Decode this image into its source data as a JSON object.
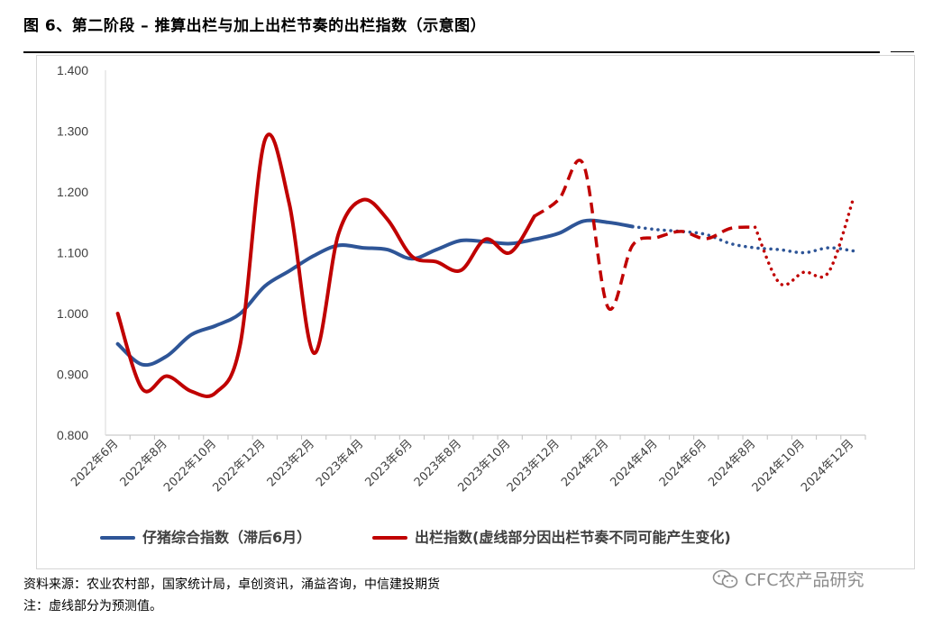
{
  "figure": {
    "title": "图 6、第二阶段 – 推算出栏与加上出栏节奏的出栏指数（示意图）",
    "source": "资料来源：农业农村部，国家统计局，卓创资讯，涌益咨询，中信建投期货",
    "note": "注：虚线部分为预测值。",
    "watermark": "CFC农产品研究"
  },
  "chart_data": {
    "type": "line",
    "title": "",
    "xlabel": "",
    "ylabel": "",
    "ylim": [
      0.8,
      1.4
    ],
    "yticks": [
      "0.800",
      "0.900",
      "1.000",
      "1.100",
      "1.200",
      "1.300",
      "1.400"
    ],
    "ytick_values": [
      0.8,
      0.9,
      1.0,
      1.1,
      1.2,
      1.3,
      1.4
    ],
    "categories": [
      "2022年6月",
      "2022年7月",
      "2022年8月",
      "2022年9月",
      "2022年10月",
      "2022年11月",
      "2022年12月",
      "2023年1月",
      "2023年2月",
      "2023年3月",
      "2023年4月",
      "2023年5月",
      "2023年6月",
      "2023年7月",
      "2023年8月",
      "2023年9月",
      "2023年10月",
      "2023年11月",
      "2023年12月",
      "2024年1月",
      "2024年2月",
      "2024年3月",
      "2024年4月",
      "2024年5月",
      "2024年6月",
      "2024年7月",
      "2024年8月",
      "2024年9月",
      "2024年10月",
      "2024年11月",
      "2024年12月"
    ],
    "xtick_labels": [
      "2022年6月",
      "2022年8月",
      "2022年10月",
      "2022年12月",
      "2023年2月",
      "2023年4月",
      "2023年6月",
      "2023年8月",
      "2023年10月",
      "2023年12月",
      "2024年2月",
      "2024年4月",
      "2024年6月",
      "2024年8月",
      "2024年10月",
      "2024年12月"
    ],
    "grid": false,
    "legend_position": "bottom",
    "series": [
      {
        "name": "仔猪综合指数（滞后6月）",
        "color": "#2E5597",
        "values": [
          0.95,
          0.916,
          0.93,
          0.965,
          0.98,
          1.0,
          1.045,
          1.07,
          1.095,
          1.112,
          1.108,
          1.105,
          1.09,
          1.105,
          1.12,
          1.118,
          1.115,
          1.122,
          1.132,
          1.152,
          1.15,
          1.143,
          1.138,
          1.135,
          1.13,
          1.115,
          1.108,
          1.105,
          1.1,
          1.108,
          1.103
        ],
        "segments": [
          {
            "style": "solid",
            "from": 0,
            "to": 21
          },
          {
            "style": "dotted",
            "from": 21,
            "to": 30
          }
        ]
      },
      {
        "name": "出栏指数(虚线部分因出栏节奏不同可能产生变化)",
        "color": "#C00000",
        "values": [
          1.0,
          0.876,
          0.897,
          0.872,
          0.87,
          0.95,
          1.285,
          1.18,
          0.935,
          1.13,
          1.187,
          1.155,
          1.094,
          1.085,
          1.071,
          1.122,
          1.1,
          1.16,
          1.188,
          1.245,
          1.01,
          1.112,
          1.125,
          1.135,
          1.123,
          1.14,
          1.142,
          1.05,
          1.068,
          1.068,
          1.188
        ],
        "segments": [
          {
            "style": "solid",
            "from": 0,
            "to": 17
          },
          {
            "style": "dashed",
            "from": 17,
            "to": 26
          },
          {
            "style": "dotted",
            "from": 26,
            "to": 30
          }
        ]
      }
    ]
  },
  "icons": {
    "watermark": "wechat-icon"
  }
}
